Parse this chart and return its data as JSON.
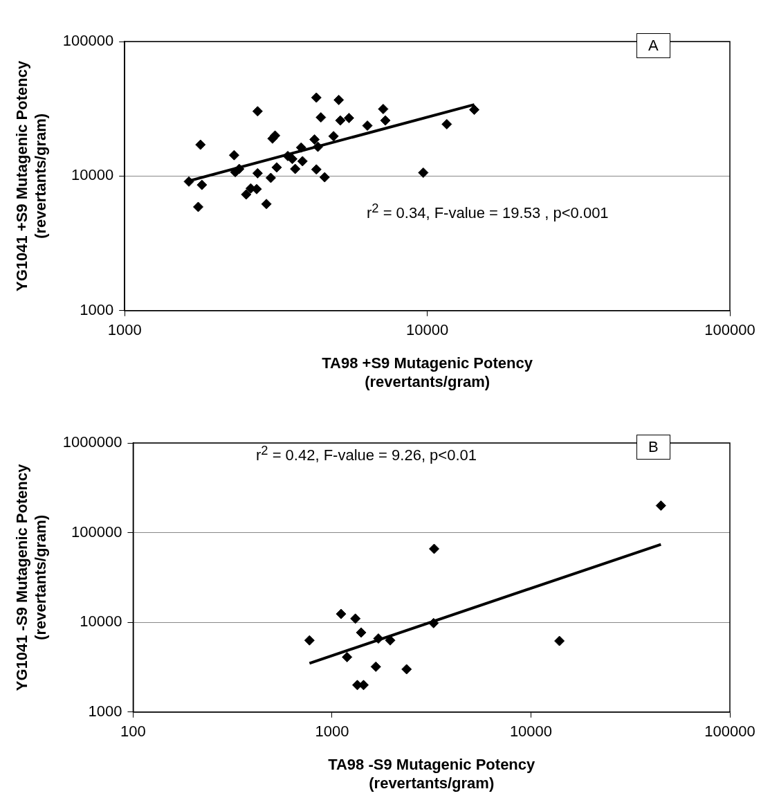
{
  "chart_data": [
    {
      "type": "scatter",
      "xlabel": "TA98 +S9 Mutagenic Potency\n(revertants/gram)",
      "ylabel": "YG1041 +S9 Mutagenic Potency\n(revertants/gram)",
      "log": "xy",
      "grid": "y",
      "legend": false,
      "marker": "diamond",
      "xlim": [
        1000,
        100000
      ],
      "xticks": [
        1000,
        10000,
        100000
      ],
      "ylim": [
        1000,
        100000
      ],
      "yticks": [
        1000,
        10000,
        100000
      ],
      "annotations": [
        "r$^{2}$ = 0.34, F-value = 19.53 , p<0.001",
        "A"
      ],
      "series": [
        {
          "color": "#000000",
          "x": [
            1630,
            1800,
            1750,
            1780,
            2300,
            2320,
            2390,
            2750,
            2750,
            2610,
            2520,
            2730,
            2940,
            3040,
            3080,
            3140,
            3180,
            3460,
            3580,
            3660,
            3870,
            3830,
            4240,
            4350,
            4300,
            4450,
            4300,
            4580,
            4900,
            5100,
            5160,
            5510,
            6340,
            7150,
            7270,
            11600,
            14300,
            9700
          ],
          "values": [
            9100,
            8600,
            5900,
            17100,
            14300,
            10700,
            11300,
            30300,
            10500,
            8100,
            7300,
            8000,
            6200,
            9700,
            19000,
            20000,
            11600,
            14100,
            13400,
            11300,
            12900,
            16300,
            18700,
            16500,
            38300,
            27300,
            11200,
            9800,
            19800,
            36800,
            25900,
            27000,
            23700,
            31500,
            25900,
            24300,
            31100,
            10600
          ]
        },
        {
          "type": "line",
          "color": "#000000",
          "marker": "none",
          "x": [
            1600,
            14300
          ],
          "values": [
            9100,
            34000
          ]
        }
      ]
    },
    {
      "type": "scatter",
      "xlabel": "TA98 -S9 Mutagenic Potency\n(revertants/gram)",
      "ylabel": "YG1041 -S9 Mutagenic Potency\n(revertants/gram)",
      "log": "xy",
      "grid": "y",
      "legend": false,
      "marker": "diamond",
      "xlim": [
        100,
        100000
      ],
      "xticks": [
        100,
        1000,
        10000,
        100000
      ],
      "ylim": [
        1000,
        1000000
      ],
      "yticks": [
        1000,
        10000,
        100000,
        1000000
      ],
      "annotations": [
        "r$^{2}$ = 0.42, F-value = 9.26, p<0.01",
        "B"
      ],
      "series": [
        {
          "color": "#000000",
          "x": [
            770,
            1110,
            1310,
            1400,
            1190,
            1710,
            1960,
            1660,
            1340,
            1440,
            2370,
            3240,
            3260,
            45000,
            13900
          ],
          "values": [
            6300,
            12400,
            11000,
            7700,
            4100,
            6600,
            6300,
            3200,
            2000,
            2000,
            3000,
            9800,
            66000,
            200000,
            6200
          ]
        },
        {
          "type": "line",
          "color": "#000000",
          "marker": "none",
          "x": [
            770,
            45000
          ],
          "values": [
            3500,
            74000
          ]
        }
      ]
    }
  ]
}
